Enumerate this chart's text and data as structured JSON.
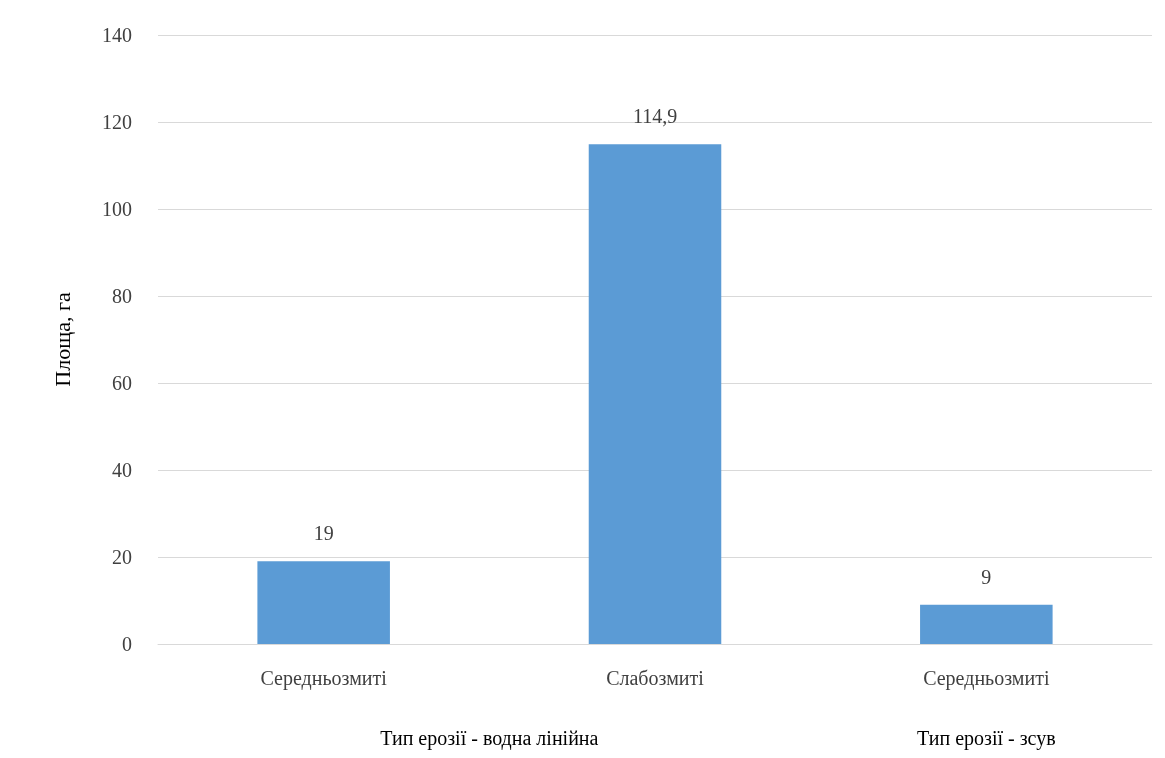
{
  "chart_data": {
    "type": "bar",
    "ylabel": "Площа, га",
    "categories": [
      "Середньозмиті",
      "Слабозмиті",
      "Середньозмиті"
    ],
    "values": [
      19,
      114.9,
      9
    ],
    "value_labels": [
      "19",
      "114,9",
      "9"
    ],
    "color": "#5b9bd5",
    "ylim": [
      0,
      140
    ],
    "yticks": [
      0,
      20,
      40,
      60,
      80,
      100,
      120,
      140
    ],
    "grid": "y",
    "annotations": [
      "Тип ерозії - водна лінійна",
      "Тип ерозії - зсув"
    ]
  }
}
